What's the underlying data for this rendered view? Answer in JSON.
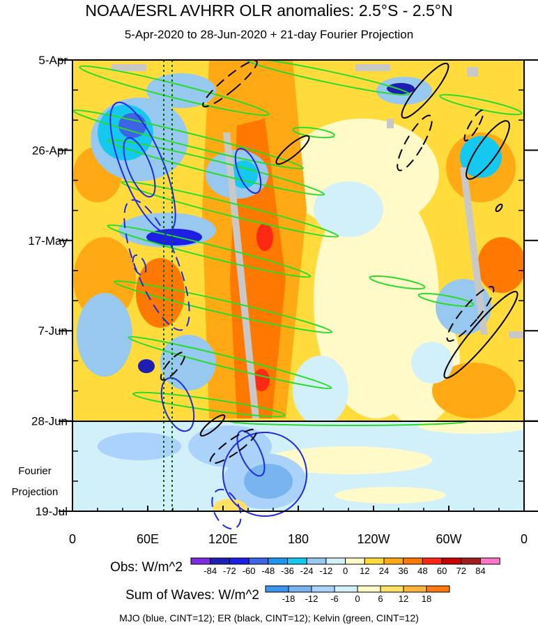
{
  "header": {
    "title": "NOAA/ESRL AVHRR OLR anomalies: 2.5°S - 2.5°N",
    "subtitle": "5-Apr-2020 to 28-Jun-2020 + 21-day Fourier Projection"
  },
  "chart_data": {
    "type": "heatmap",
    "y_tick_labels": [
      "5-Apr",
      "26-Apr",
      "17-May",
      "7-Jun",
      "28-Jun",
      "19-Jul"
    ],
    "x_tick_labels": [
      "0",
      "60E",
      "120E",
      "180",
      "120W",
      "60W",
      "0"
    ],
    "projection_label_line1": "Fourier",
    "projection_label_line2": "Projection",
    "x_range_deg_east": [
      0,
      360
    ],
    "time_range": [
      "5-Apr-2020",
      "19-Jul-2020"
    ],
    "observation_end": "28-Jun-2020",
    "legend_obs": {
      "title": "Obs: W/m^2",
      "levels": [
        "-84",
        "-72",
        "-60",
        "-48",
        "-36",
        "-24",
        "-12",
        "0",
        "12",
        "24",
        "36",
        "48",
        "60",
        "72",
        "84"
      ],
      "colors": [
        "#7b2be0",
        "#1e1eb4",
        "#1e1ee6",
        "#3c64e6",
        "#1e96f0",
        "#14c8f0",
        "#96c8f0",
        "#d2f0fa",
        "#fffac8",
        "#ffdc3c",
        "#ffaa14",
        "#ff7800",
        "#ff2814",
        "#c80000",
        "#a01e1e",
        "#ff78c8"
      ]
    },
    "legend_waves": {
      "title": "Sum of Waves: W/m^2",
      "levels": [
        "-18",
        "-12",
        "-6",
        "0",
        "6",
        "12",
        "18"
      ],
      "colors": [
        "#3c96f0",
        "#78b4f0",
        "#aad2fa",
        "#d2f0fa",
        "#fffac8",
        "#ffe164",
        "#ffb43c",
        "#ff7814"
      ]
    },
    "footer_note": "MJO (blue, CINT=12); ER (black, CINT=12); Kelvin (green, CINT=12)",
    "series_colors": {
      "MJO": "#1e28e6",
      "ER": "#000000",
      "Kelvin": "#28dc28"
    }
  }
}
